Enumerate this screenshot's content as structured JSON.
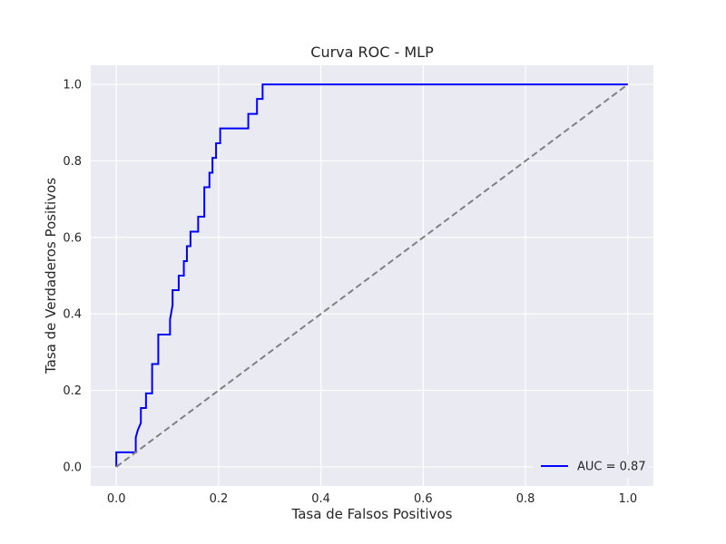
{
  "chart_data": {
    "type": "line",
    "title": "Curva ROC - MLP",
    "xlabel": "Tasa de Falsos Positivos",
    "ylabel": "Tasa de Verdaderos Positivos",
    "xlim": [
      -0.05,
      1.05
    ],
    "ylim": [
      -0.05,
      1.05
    ],
    "xticks": [
      0.0,
      0.2,
      0.4,
      0.6,
      0.8,
      1.0
    ],
    "yticks": [
      0.0,
      0.2,
      0.4,
      0.6,
      0.8,
      1.0
    ],
    "xtick_labels": [
      "0.0",
      "0.2",
      "0.4",
      "0.6",
      "0.8",
      "1.0"
    ],
    "ytick_labels": [
      "0.0",
      "0.2",
      "0.4",
      "0.6",
      "0.8",
      "1.0"
    ],
    "grid": true,
    "legend_position": "lower right",
    "colors": {
      "plot_background": "#eaeaf2",
      "grid": "#ffffff",
      "roc": "#0000ff",
      "diagonal": "#808080"
    },
    "series": [
      {
        "name": "AUC = 0.87",
        "style": "solid",
        "x": [
          0.0,
          0.0,
          0.038,
          0.038,
          0.042,
          0.048,
          0.048,
          0.058,
          0.058,
          0.07,
          0.07,
          0.082,
          0.082,
          0.105,
          0.105,
          0.11,
          0.11,
          0.122,
          0.122,
          0.132,
          0.132,
          0.138,
          0.138,
          0.145,
          0.145,
          0.16,
          0.16,
          0.172,
          0.172,
          0.182,
          0.182,
          0.188,
          0.188,
          0.195,
          0.195,
          0.203,
          0.203,
          0.258,
          0.258,
          0.275,
          0.275,
          0.286,
          0.286,
          1.0
        ],
        "y": [
          0.0,
          0.038,
          0.038,
          0.077,
          0.096,
          0.115,
          0.154,
          0.154,
          0.192,
          0.192,
          0.269,
          0.269,
          0.346,
          0.346,
          0.385,
          0.423,
          0.462,
          0.462,
          0.5,
          0.5,
          0.538,
          0.538,
          0.577,
          0.577,
          0.615,
          0.615,
          0.654,
          0.654,
          0.731,
          0.731,
          0.769,
          0.769,
          0.808,
          0.808,
          0.846,
          0.846,
          0.885,
          0.885,
          0.923,
          0.923,
          0.962,
          0.962,
          1.0,
          1.0
        ]
      },
      {
        "style": "dashed",
        "x": [
          0.0,
          1.0
        ],
        "y": [
          0.0,
          1.0
        ]
      }
    ]
  }
}
